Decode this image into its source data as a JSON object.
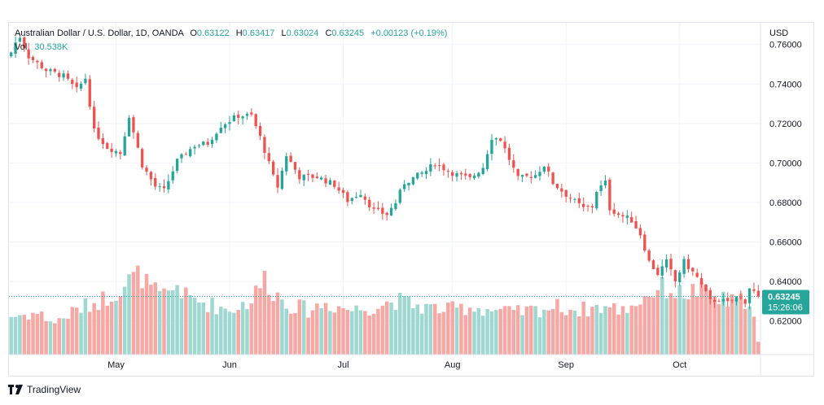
{
  "legend": {
    "symbol": "Australian Dollar / U.S. Dollar, 1D, OANDA",
    "o_label": "O",
    "o_value": "0.63122",
    "h_label": "H",
    "h_value": "0.63417",
    "l_label": "L",
    "l_value": "0.63024",
    "c_label": "C",
    "c_value": "0.63245",
    "change": "+0.00123 (+0.19%)",
    "vol_label": "Vol",
    "vol_value": "30.538K"
  },
  "price_tag": {
    "price": "0.63245",
    "countdown": "15:26:06"
  },
  "branding": {
    "name": "TradingView"
  },
  "colors": {
    "up": "#26a69a",
    "down": "#ef5350",
    "vol_up": "#9fd7d1",
    "vol_down": "#f6a8a5",
    "grid": "#f0f3fa",
    "axis_text": "#131722",
    "border": "#e0e3eb"
  },
  "chart_data": {
    "type": "candlestick",
    "currency": "USD",
    "y_axis_ticks": [
      "0.76000",
      "0.74000",
      "0.72000",
      "0.70000",
      "0.68000",
      "0.66000",
      "0.64000",
      "0.62000"
    ],
    "ylim": [
      0.603,
      0.771
    ],
    "x_axis_ticks": [
      {
        "label": "May",
        "index": 24
      },
      {
        "label": "Jun",
        "index": 50
      },
      {
        "label": "Jul",
        "index": 76
      },
      {
        "label": "Aug",
        "index": 101
      },
      {
        "label": "Sep",
        "index": 127
      },
      {
        "label": "Oct",
        "index": 153
      }
    ],
    "candle_count": 172,
    "last_close": 0.63245,
    "anchors": [
      [
        0,
        0.756
      ],
      [
        1,
        0.761
      ],
      [
        2,
        0.764
      ],
      [
        4,
        0.754
      ],
      [
        8,
        0.747
      ],
      [
        12,
        0.744
      ],
      [
        15,
        0.737
      ],
      [
        17,
        0.743
      ],
      [
        18,
        0.73
      ],
      [
        19,
        0.716
      ],
      [
        22,
        0.708
      ],
      [
        25,
        0.705
      ],
      [
        27,
        0.724
      ],
      [
        30,
        0.699
      ],
      [
        33,
        0.688
      ],
      [
        35,
        0.686
      ],
      [
        38,
        0.701
      ],
      [
        42,
        0.709
      ],
      [
        45,
        0.71
      ],
      [
        48,
        0.719
      ],
      [
        52,
        0.724
      ],
      [
        55,
        0.724
      ],
      [
        57,
        0.713
      ],
      [
        60,
        0.693
      ],
      [
        61,
        0.688
      ],
      [
        63,
        0.704
      ],
      [
        66,
        0.693
      ],
      [
        70,
        0.693
      ],
      [
        74,
        0.689
      ],
      [
        77,
        0.681
      ],
      [
        80,
        0.685
      ],
      [
        83,
        0.676
      ],
      [
        86,
        0.674
      ],
      [
        88,
        0.68
      ],
      [
        90,
        0.69
      ],
      [
        95,
        0.696
      ],
      [
        97,
        0.7
      ],
      [
        100,
        0.696
      ],
      [
        102,
        0.694
      ],
      [
        105,
        0.692
      ],
      [
        108,
        0.698
      ],
      [
        110,
        0.713
      ],
      [
        112,
        0.712
      ],
      [
        114,
        0.702
      ],
      [
        116,
        0.692
      ],
      [
        120,
        0.694
      ],
      [
        122,
        0.699
      ],
      [
        124,
        0.69
      ],
      [
        127,
        0.684
      ],
      [
        131,
        0.677
      ],
      [
        133,
        0.678
      ],
      [
        134,
        0.686
      ],
      [
        136,
        0.69
      ],
      [
        137,
        0.677
      ],
      [
        139,
        0.674
      ],
      [
        142,
        0.671
      ],
      [
        144,
        0.664
      ],
      [
        146,
        0.65
      ],
      [
        148,
        0.644
      ],
      [
        150,
        0.65
      ],
      [
        152,
        0.64
      ],
      [
        154,
        0.65
      ],
      [
        157,
        0.642
      ],
      [
        159,
        0.634
      ],
      [
        160,
        0.63
      ],
      [
        162,
        0.631
      ],
      [
        164,
        0.629
      ],
      [
        166,
        0.632
      ],
      [
        168,
        0.63
      ],
      [
        169,
        0.637
      ],
      [
        171,
        0.6325
      ]
    ],
    "volume_profile": [
      [
        0,
        12
      ],
      [
        6,
        13
      ],
      [
        10,
        10
      ],
      [
        15,
        14
      ],
      [
        22,
        18
      ],
      [
        24,
        20
      ],
      [
        26,
        22
      ],
      [
        28,
        24
      ],
      [
        30,
        25
      ],
      [
        31,
        22
      ],
      [
        34,
        18
      ],
      [
        36,
        19
      ],
      [
        38,
        22
      ],
      [
        40,
        18
      ],
      [
        45,
        16
      ],
      [
        50,
        14
      ],
      [
        55,
        17
      ],
      [
        58,
        24
      ],
      [
        60,
        20
      ],
      [
        63,
        16
      ],
      [
        68,
        14
      ],
      [
        72,
        16
      ],
      [
        78,
        14
      ],
      [
        83,
        15
      ],
      [
        88,
        17
      ],
      [
        94,
        15
      ],
      [
        100,
        14
      ],
      [
        105,
        15
      ],
      [
        110,
        14
      ],
      [
        115,
        13
      ],
      [
        120,
        14
      ],
      [
        125,
        15
      ],
      [
        130,
        14
      ],
      [
        135,
        15
      ],
      [
        140,
        14
      ],
      [
        144,
        17
      ],
      [
        147,
        20
      ],
      [
        150,
        21
      ],
      [
        153,
        19
      ],
      [
        157,
        20
      ],
      [
        160,
        18
      ],
      [
        163,
        17
      ],
      [
        166,
        16
      ],
      [
        169,
        18
      ],
      [
        171,
        4
      ]
    ],
    "volume_max": 28
  }
}
